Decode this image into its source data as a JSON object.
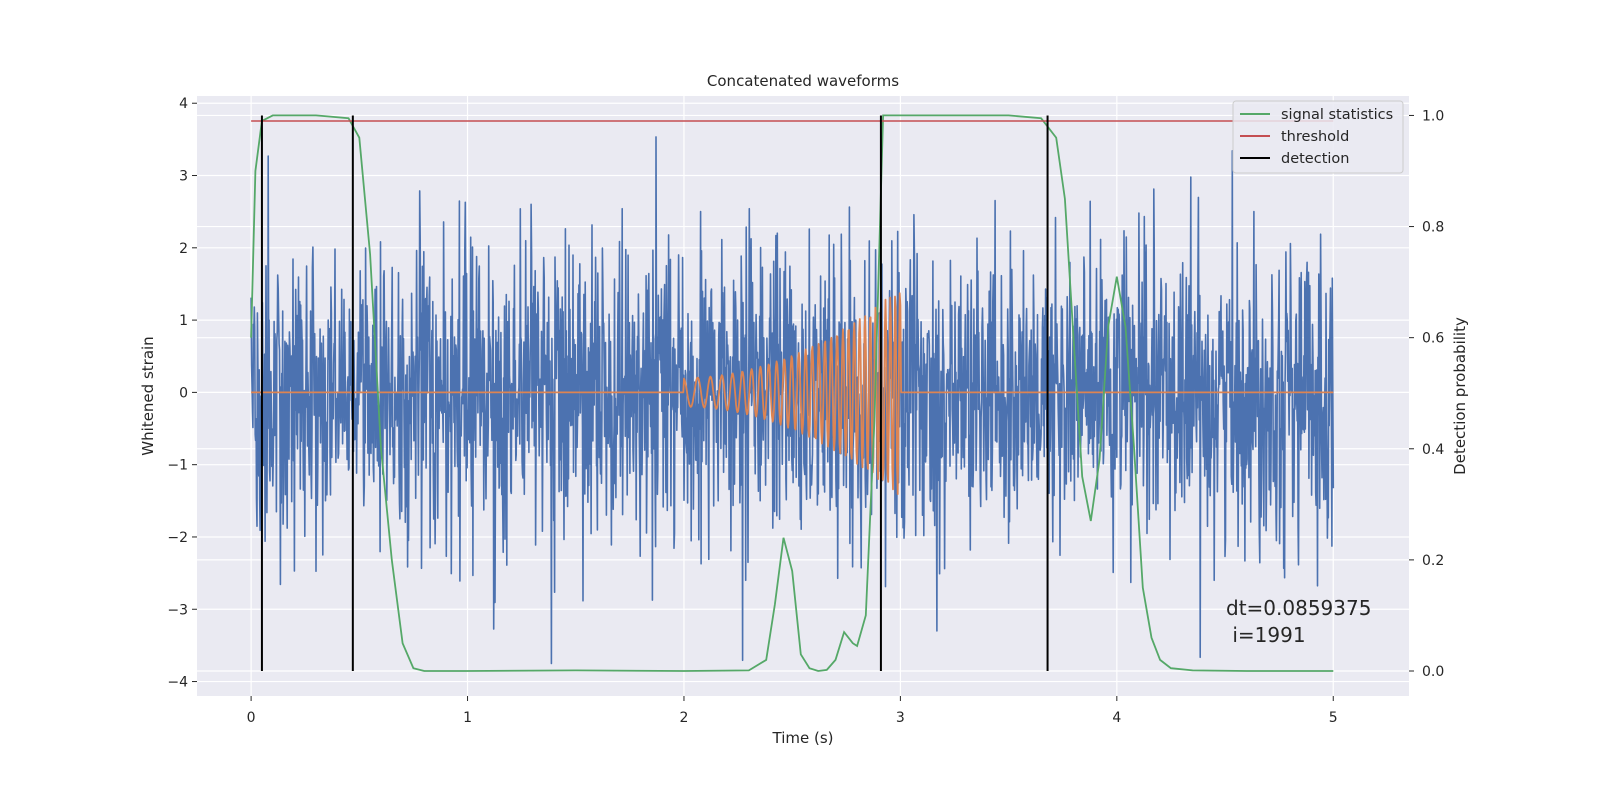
{
  "chart_data": {
    "type": "line",
    "title": "Concatenated waveforms",
    "xlabel": "Time (s)",
    "ylabel": "Whitened strain",
    "y2label": "Detection probability",
    "xlim": [
      -0.25,
      5.35
    ],
    "ylim": [
      -4.2,
      4.1
    ],
    "y2lim": [
      -0.045,
      1.035
    ],
    "x_ticks": [
      0,
      1,
      2,
      3,
      4,
      5
    ],
    "y_ticks": [
      -4,
      -3,
      -2,
      -1,
      0,
      1,
      2,
      3,
      4
    ],
    "y2_ticks": [
      0.0,
      0.2,
      0.4,
      0.6,
      0.8,
      1.0
    ],
    "x_tick_labels": [
      "0",
      "1",
      "2",
      "3",
      "4",
      "5"
    ],
    "y_tick_labels": [
      "−4",
      "−3",
      "−2",
      "−1",
      "0",
      "1",
      "2",
      "3",
      "4"
    ],
    "y2_tick_labels": [
      "0.0",
      "0.2",
      "0.4",
      "0.6",
      "0.8",
      "1.0"
    ],
    "grid": true,
    "legend_position": "top-right",
    "noise": {
      "color": "#4c72b0",
      "x_range": [
        0,
        5
      ],
      "std": 1.0,
      "max_abs": 3.75
    },
    "injected_signal": {
      "color": "#dd8452",
      "x_start": 2.0,
      "x_end": 3.0,
      "amplitude_start": 0.2,
      "amplitude_end": 1.45,
      "freq_start": 14,
      "freq_end": 46,
      "baseline": 0
    },
    "series": [
      {
        "name": "signal statistics",
        "color": "#55a868",
        "axis": "right",
        "x": [
          0.0,
          0.02,
          0.05,
          0.1,
          0.3,
          0.45,
          0.5,
          0.55,
          0.6,
          0.65,
          0.7,
          0.75,
          0.8,
          1.0,
          1.5,
          2.0,
          2.3,
          2.38,
          2.42,
          2.46,
          2.5,
          2.54,
          2.58,
          2.62,
          2.66,
          2.7,
          2.74,
          2.78,
          2.8,
          2.84,
          2.88,
          2.92,
          3.0,
          3.5,
          3.65,
          3.72,
          3.76,
          3.8,
          3.84,
          3.88,
          3.92,
          3.96,
          4.0,
          4.04,
          4.08,
          4.12,
          4.16,
          4.2,
          4.25,
          4.35,
          4.6,
          5.0
        ],
        "y": [
          0.6,
          0.9,
          0.99,
          1.0,
          1.0,
          0.995,
          0.96,
          0.75,
          0.4,
          0.2,
          0.05,
          0.005,
          0.0,
          0.0,
          0.001,
          0.0,
          0.001,
          0.02,
          0.12,
          0.24,
          0.18,
          0.03,
          0.005,
          0.0,
          0.002,
          0.02,
          0.07,
          0.05,
          0.045,
          0.1,
          0.45,
          1.0,
          1.0,
          1.0,
          0.995,
          0.96,
          0.85,
          0.6,
          0.35,
          0.27,
          0.38,
          0.62,
          0.71,
          0.62,
          0.4,
          0.15,
          0.06,
          0.02,
          0.005,
          0.001,
          0.0,
          0.0
        ]
      },
      {
        "name": "threshold",
        "color": "#c44e52",
        "axis": "right",
        "x": [
          0,
          5
        ],
        "y": [
          0.99,
          0.99
        ]
      },
      {
        "name": "detection",
        "color": "#000000",
        "axis": "right",
        "x": [
          0.05,
          0.47,
          2.91,
          3.68
        ],
        "y_range": [
          0.0,
          1.0
        ]
      }
    ],
    "annotation": {
      "lines": [
        "dt=0.0859375",
        " i=1991"
      ]
    }
  }
}
